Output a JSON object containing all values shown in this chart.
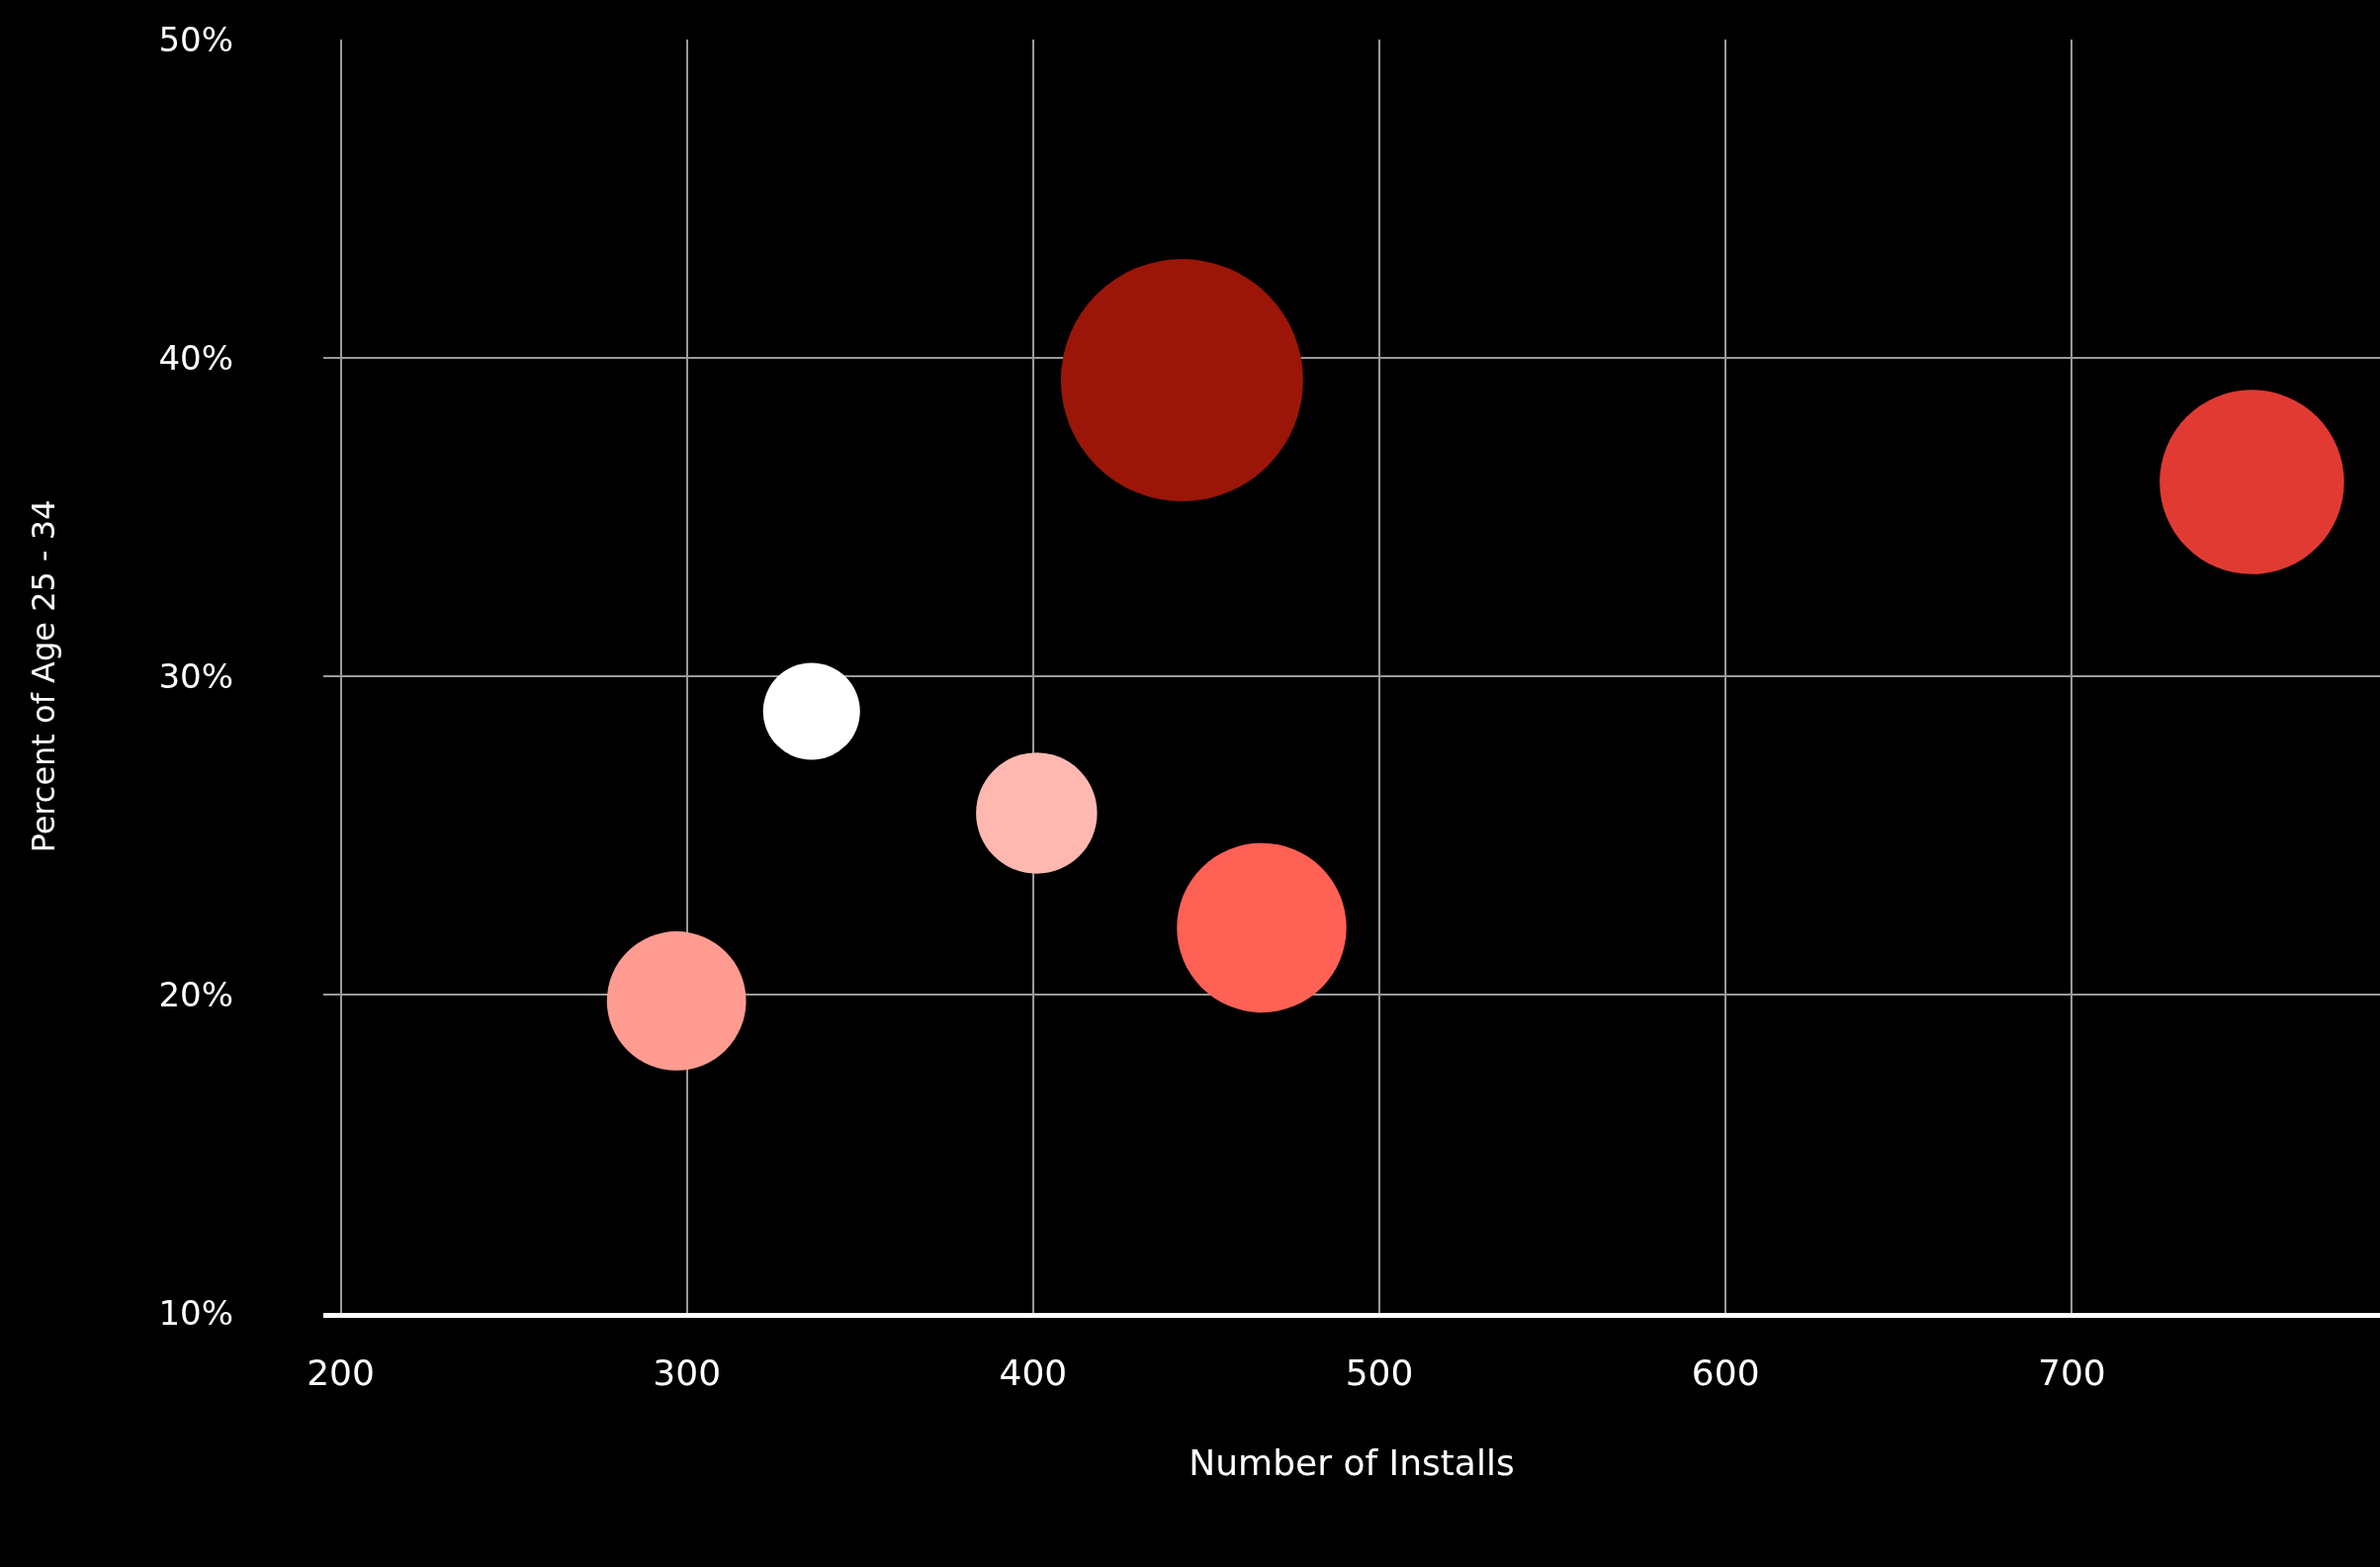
{
  "chart_data": {
    "type": "bubble",
    "xlabel": "Number of Installs",
    "ylabel": "Percent of Age 25 - 34",
    "x": [
      443,
      752,
      336,
      401,
      466,
      297
    ],
    "values": [
      39.3,
      36.1,
      28.9,
      25.7,
      22.1,
      19.8
    ],
    "sizes": [
      1,
      0.58,
      0.16,
      0.25,
      0.49,
      0.33
    ],
    "colors": [
      "#9b1608",
      "#e03a33",
      "#ffffff",
      "#ffb8b0",
      "#ff6155",
      "#ff9b90"
    ],
    "xlim": [
      195,
      789
    ],
    "xticks": [
      200,
      300,
      400,
      500,
      600,
      700
    ],
    "ylim": [
      10,
      50
    ],
    "yticks": [
      {
        "value": 10,
        "label": "10%"
      },
      {
        "value": 20,
        "label": "20%"
      },
      {
        "value": 30,
        "label": "30%"
      },
      {
        "value": 40,
        "label": "40%"
      },
      {
        "value": 50,
        "label": "50%"
      }
    ],
    "grid": true
  }
}
